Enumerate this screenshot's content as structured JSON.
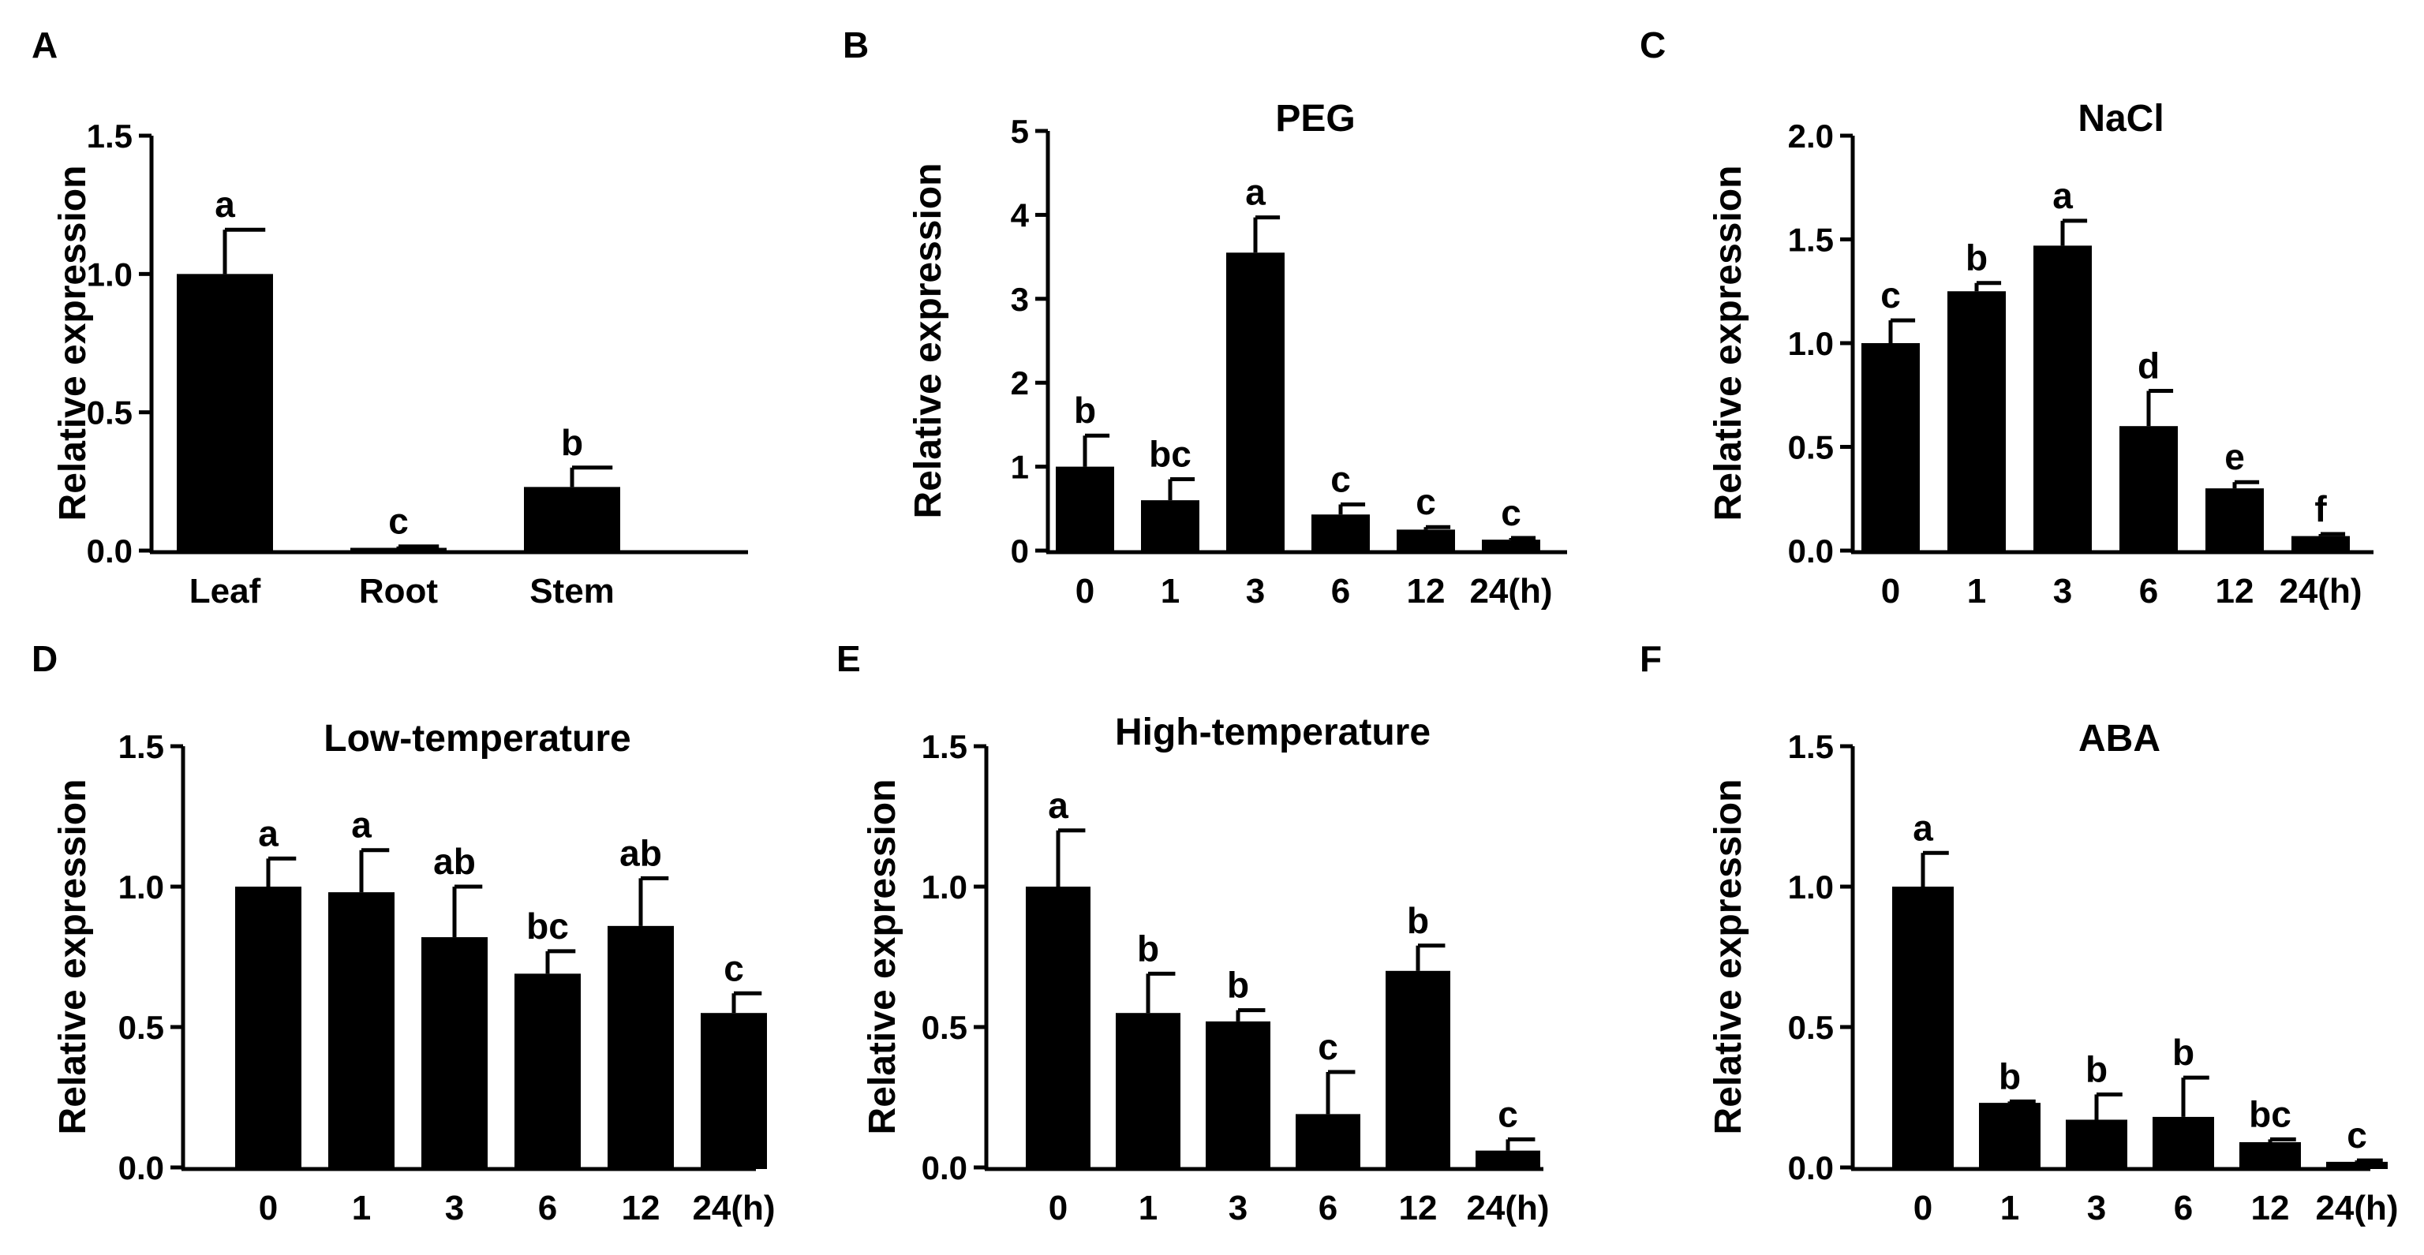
{
  "y_label": "Relative expression",
  "colors": {
    "bar": "#000000",
    "axis": "#000000",
    "background": "#ffffff"
  },
  "panels": [
    "A",
    "B",
    "C",
    "D",
    "E",
    "F"
  ],
  "chart_data": [
    {
      "panel": "A",
      "type": "bar",
      "title": "",
      "categories": [
        "Leaf",
        "Root",
        "Stem"
      ],
      "values": [
        1.0,
        0.01,
        0.23
      ],
      "errors": [
        0.16,
        0.005,
        0.07
      ],
      "letters": [
        "a",
        "c",
        "b"
      ],
      "ylabel": "Relative expression",
      "ylim": [
        0,
        1.5
      ],
      "yticks": [
        "0.0",
        "0.5",
        "1.0",
        "1.5"
      ],
      "ytick_values": [
        0,
        0.5,
        1.0,
        1.5
      ]
    },
    {
      "panel": "B",
      "type": "bar",
      "title": "PEG",
      "categories": [
        "0",
        "1",
        "3",
        "6",
        "12",
        "24(h)"
      ],
      "values": [
        1.0,
        0.6,
        3.55,
        0.43,
        0.25,
        0.13
      ],
      "errors": [
        0.37,
        0.25,
        0.42,
        0.12,
        0.03,
        0.02
      ],
      "letters": [
        "b",
        "bc",
        "a",
        "c",
        "c",
        "c"
      ],
      "ylabel": "Relative expression",
      "ylim": [
        0,
        5
      ],
      "yticks": [
        "0",
        "1",
        "2",
        "3",
        "4",
        "5"
      ],
      "ytick_values": [
        0,
        1,
        2,
        3,
        4,
        5
      ]
    },
    {
      "panel": "C",
      "type": "bar",
      "title": "NaCl",
      "categories": [
        "0",
        "1",
        "3",
        "6",
        "12",
        "24(h)"
      ],
      "values": [
        1.0,
        1.25,
        1.47,
        0.6,
        0.3,
        0.07
      ],
      "errors": [
        0.11,
        0.04,
        0.12,
        0.17,
        0.03,
        0.01
      ],
      "letters": [
        "c",
        "b",
        "a",
        "d",
        "e",
        "f"
      ],
      "ylabel": "Relative expression",
      "ylim": [
        0,
        2.0
      ],
      "yticks": [
        "0.0",
        "0.5",
        "1.0",
        "1.5",
        "2.0"
      ],
      "ytick_values": [
        0,
        0.5,
        1.0,
        1.5,
        2.0
      ]
    },
    {
      "panel": "D",
      "type": "bar",
      "title": "Low-temperature",
      "categories": [
        "0",
        "1",
        "3",
        "6",
        "12",
        "24(h)"
      ],
      "values": [
        1.0,
        0.98,
        0.82,
        0.69,
        0.86,
        0.55
      ],
      "errors": [
        0.1,
        0.15,
        0.18,
        0.08,
        0.17,
        0.07
      ],
      "letters": [
        "a",
        "a",
        "ab",
        "bc",
        "ab",
        "c"
      ],
      "ylabel": "Relative expression",
      "ylim": [
        0,
        1.5
      ],
      "yticks": [
        "0.0",
        "0.5",
        "1.0",
        "1.5"
      ],
      "ytick_values": [
        0,
        0.5,
        1.0,
        1.5
      ]
    },
    {
      "panel": "E",
      "type": "bar",
      "title": "High-temperature",
      "categories": [
        "0",
        "1",
        "3",
        "6",
        "12",
        "24(h)"
      ],
      "values": [
        1.0,
        0.55,
        0.52,
        0.19,
        0.7,
        0.06
      ],
      "errors": [
        0.2,
        0.14,
        0.04,
        0.15,
        0.09,
        0.04
      ],
      "letters": [
        "a",
        "b",
        "b",
        "c",
        "b",
        "c"
      ],
      "ylabel": "Relative expression",
      "ylim": [
        0,
        1.5
      ],
      "yticks": [
        "0.0",
        "0.5",
        "1.0",
        "1.5"
      ],
      "ytick_values": [
        0,
        0.5,
        1.0,
        1.5
      ]
    },
    {
      "panel": "F",
      "type": "bar",
      "title": "ABA",
      "categories": [
        "0",
        "1",
        "3",
        "6",
        "12",
        "24(h)"
      ],
      "values": [
        1.0,
        0.23,
        0.17,
        0.18,
        0.09,
        0.02
      ],
      "errors": [
        0.12,
        0.005,
        0.09,
        0.14,
        0.01,
        0.005
      ],
      "letters": [
        "a",
        "b",
        "b",
        "b",
        "bc",
        "c"
      ],
      "ylabel": "Relative expression",
      "ylim": [
        0,
        1.5
      ],
      "yticks": [
        "0.0",
        "0.5",
        "1.0",
        "1.5"
      ],
      "ytick_values": [
        0,
        0.5,
        1.0,
        1.5
      ]
    }
  ]
}
